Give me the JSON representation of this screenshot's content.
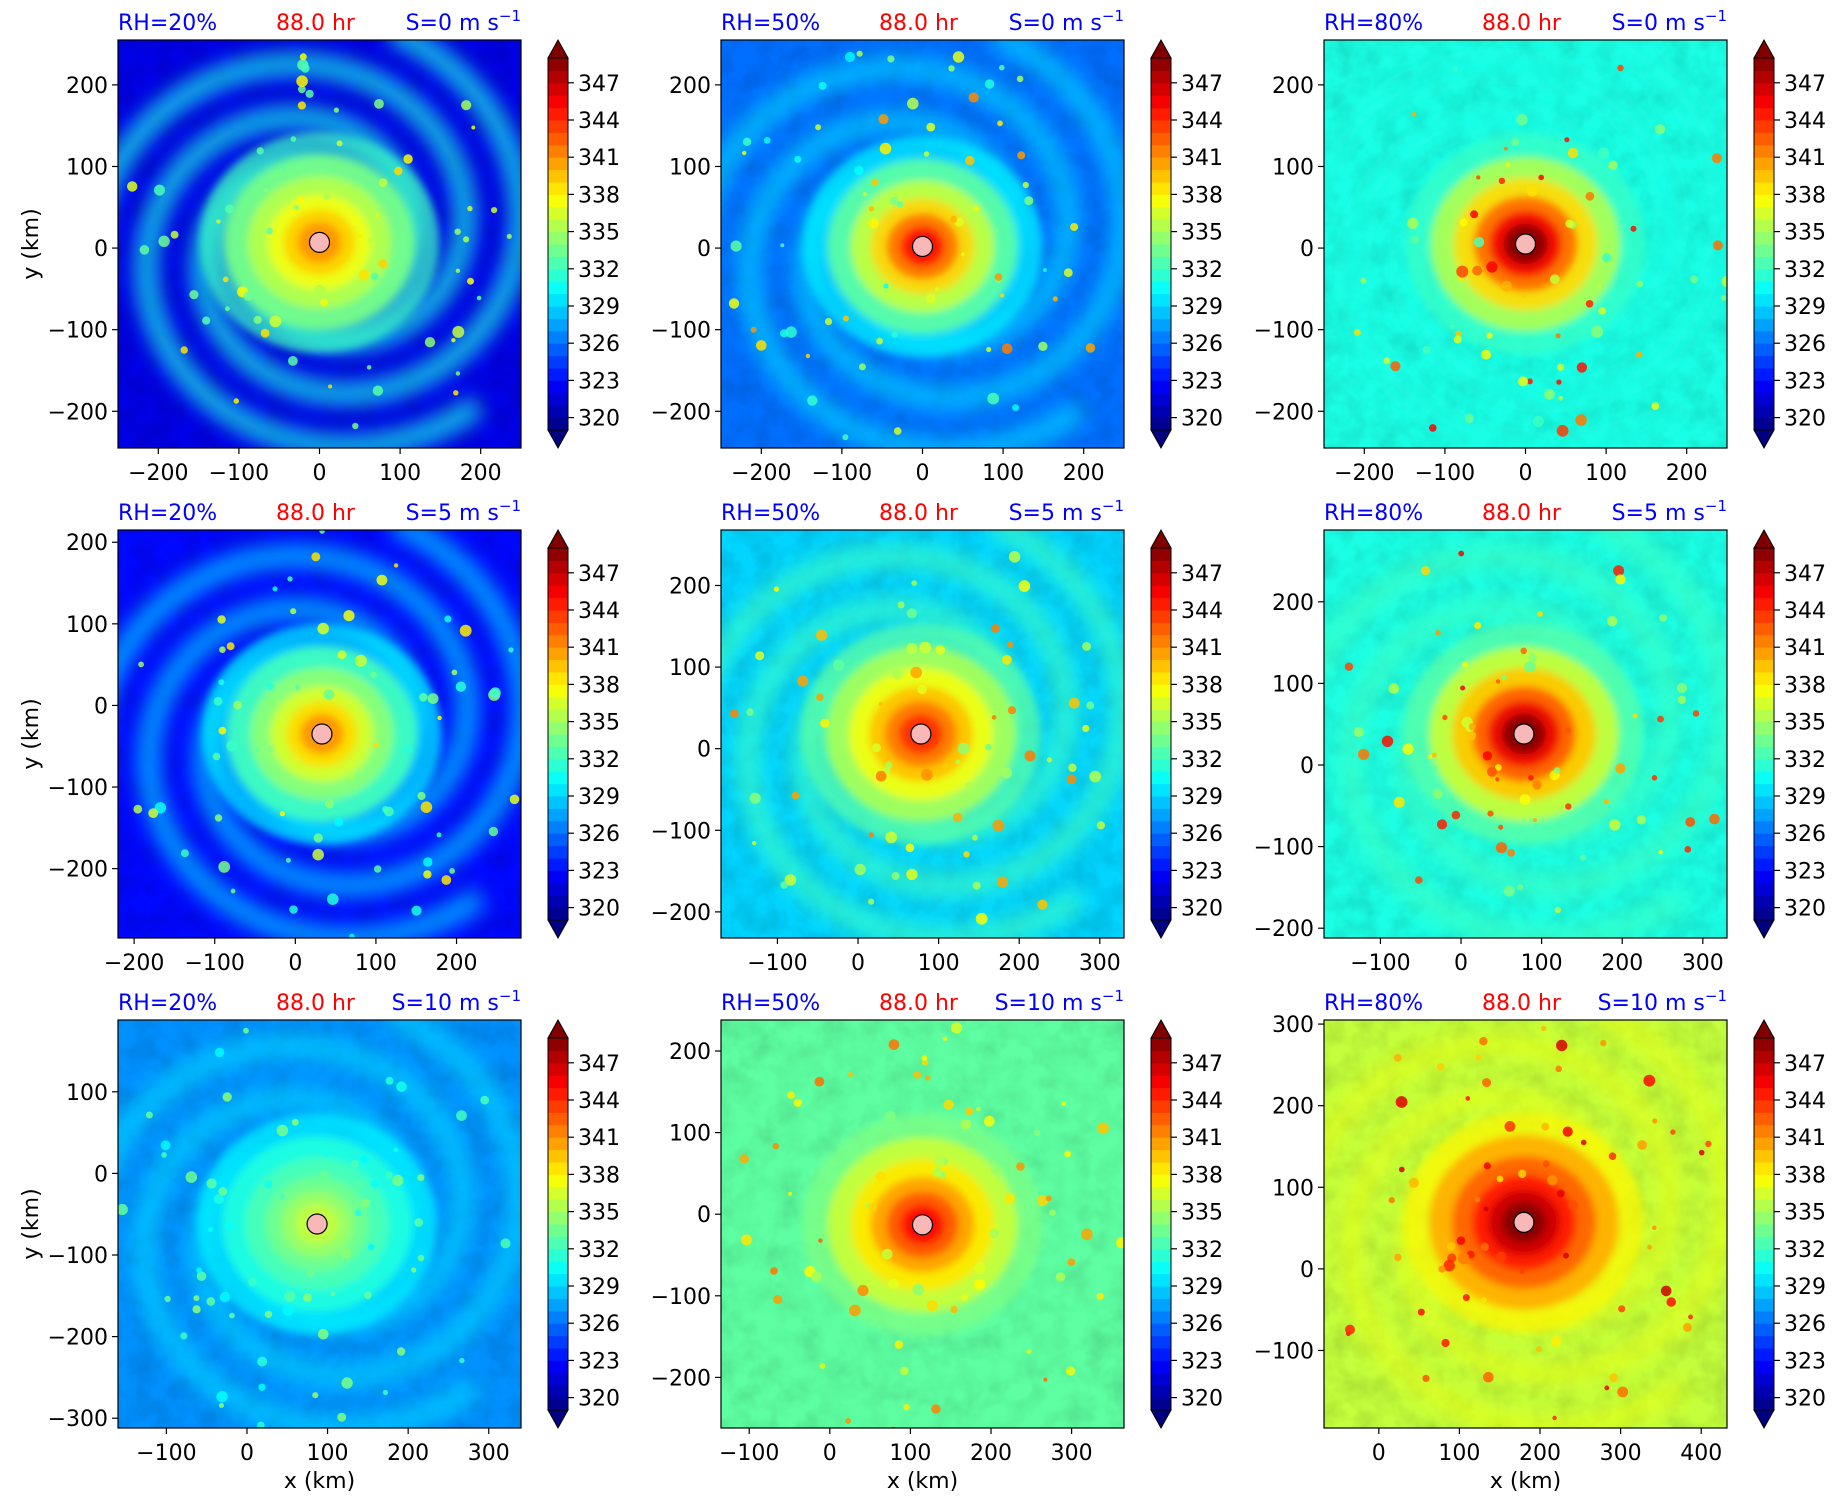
{
  "colorbar": {
    "ticks": [
      "320",
      "323",
      "326",
      "329",
      "332",
      "335",
      "338",
      "341",
      "344",
      "347"
    ],
    "vmin": 319,
    "vmax": 349,
    "levels": 30
  },
  "labels": {
    "ylabel": "y (km)",
    "xlabel": "x (km)",
    "time": "88.0 hr",
    "s_prefix": "S=",
    "s_unit": "m s",
    "s_exp": "−1"
  },
  "colors": {
    "rh_label": "#0000ff",
    "time_label": "#ff0000",
    "center_marker": "#f9b8b8"
  },
  "chart_data": [
    {
      "type": "heatmap",
      "rh": "RH=20%",
      "shear": "0",
      "xticks": [
        "−200",
        "−100",
        "0",
        "100",
        "200"
      ],
      "xvals": [
        -200,
        -100,
        0,
        100,
        200
      ],
      "xlim": [
        -250,
        250
      ],
      "yticks": [
        "200",
        "100",
        "0",
        "−100",
        "−200"
      ],
      "yvals": [
        200,
        100,
        0,
        -100,
        -200
      ],
      "ylim": [
        -245,
        255
      ],
      "center": [
        0,
        7
      ],
      "max_theta": 341
    },
    {
      "type": "heatmap",
      "rh": "RH=50%",
      "shear": "0",
      "xticks": [
        "−200",
        "−100",
        "0",
        "100",
        "200"
      ],
      "xvals": [
        -200,
        -100,
        0,
        100,
        200
      ],
      "xlim": [
        -250,
        250
      ],
      "yticks": [
        "200",
        "100",
        "0",
        "−100",
        "−200"
      ],
      "yvals": [
        200,
        100,
        0,
        -100,
        -200
      ],
      "ylim": [
        -245,
        255
      ],
      "center": [
        0,
        2
      ],
      "max_theta": 345
    },
    {
      "type": "heatmap",
      "rh": "RH=80%",
      "shear": "0",
      "xticks": [
        "−200",
        "−100",
        "0",
        "100",
        "200"
      ],
      "xvals": [
        -200,
        -100,
        0,
        100,
        200
      ],
      "xlim": [
        -250,
        250
      ],
      "yticks": [
        "200",
        "100",
        "0",
        "−100",
        "−200"
      ],
      "yvals": [
        200,
        100,
        0,
        -100,
        -200
      ],
      "ylim": [
        -245,
        255
      ],
      "center": [
        0,
        5
      ],
      "max_theta": 349
    },
    {
      "type": "heatmap",
      "rh": "RH=20%",
      "shear": "5",
      "xticks": [
        "−200",
        "−100",
        "0",
        "100",
        "200"
      ],
      "xvals": [
        -200,
        -100,
        0,
        100,
        200
      ],
      "xlim": [
        -220,
        280
      ],
      "yticks": [
        "200",
        "100",
        "0",
        "−100",
        "−200"
      ],
      "yvals": [
        200,
        100,
        0,
        -100,
        -200
      ],
      "ylim": [
        -285,
        215
      ],
      "center": [
        33,
        -35
      ],
      "max_theta": 341
    },
    {
      "type": "heatmap",
      "rh": "RH=50%",
      "shear": "5",
      "xticks": [
        "−100",
        "0",
        "100",
        "200",
        "300"
      ],
      "xvals": [
        -100,
        0,
        100,
        200,
        300
      ],
      "xlim": [
        -170,
        330
      ],
      "yticks": [
        "200",
        "100",
        "0",
        "−100",
        "−200"
      ],
      "yvals": [
        200,
        100,
        0,
        -100,
        -200
      ],
      "ylim": [
        -232,
        268
      ],
      "center": [
        78,
        18
      ],
      "max_theta": 344
    },
    {
      "type": "heatmap",
      "rh": "RH=80%",
      "shear": "5",
      "xticks": [
        "−100",
        "0",
        "100",
        "200",
        "300"
      ],
      "xvals": [
        -100,
        0,
        100,
        200,
        300
      ],
      "xlim": [
        -170,
        330
      ],
      "yticks": [
        "200",
        "100",
        "0",
        "−100",
        "−200"
      ],
      "yvals": [
        200,
        100,
        0,
        -100,
        -200
      ],
      "ylim": [
        -212,
        288
      ],
      "center": [
        78,
        38
      ],
      "max_theta": 349
    },
    {
      "type": "heatmap",
      "rh": "RH=20%",
      "shear": "10",
      "xticks": [
        "−100",
        "0",
        "100",
        "200",
        "300"
      ],
      "xvals": [
        -100,
        0,
        100,
        200,
        300
      ],
      "xlim": [
        -160,
        340
      ],
      "yticks": [
        "100",
        "0",
        "−100",
        "−200",
        "−300"
      ],
      "yvals": [
        100,
        0,
        -100,
        -200,
        -300
      ],
      "ylim": [
        -312,
        188
      ],
      "center": [
        87,
        -62
      ],
      "max_theta": 336
    },
    {
      "type": "heatmap",
      "rh": "RH=50%",
      "shear": "10",
      "xticks": [
        "−100",
        "0",
        "100",
        "200",
        "300"
      ],
      "xvals": [
        -100,
        0,
        100,
        200,
        300
      ],
      "xlim": [
        -135,
        365
      ],
      "yticks": [
        "200",
        "100",
        "0",
        "−100",
        "−200"
      ],
      "yvals": [
        200,
        100,
        0,
        -100,
        -200
      ],
      "ylim": [
        -262,
        238
      ],
      "center": [
        115,
        -13
      ],
      "max_theta": 345
    },
    {
      "type": "heatmap",
      "rh": "RH=80%",
      "shear": "10",
      "xticks": [
        "0",
        "100",
        "200",
        "300",
        "400"
      ],
      "xvals": [
        0,
        100,
        200,
        300,
        400
      ],
      "xlim": [
        -68,
        432
      ],
      "yticks": [
        "300",
        "200",
        "100",
        "0",
        "−100"
      ],
      "yvals": [
        300,
        200,
        100,
        0,
        -100
      ],
      "ylim": [
        -195,
        305
      ],
      "center": [
        180,
        57
      ],
      "max_theta": 349
    }
  ]
}
